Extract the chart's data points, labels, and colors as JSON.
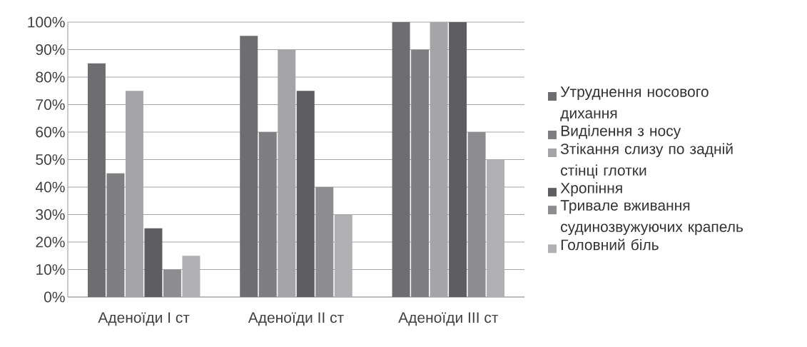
{
  "chart_data": {
    "type": "bar",
    "categories": [
      "Аденоїди І ст",
      "Аденоїди ІІ ст",
      "Аденоїди ІІІ ст"
    ],
    "series": [
      {
        "name": "Утруднення носового дихання",
        "color": "#6e6e70",
        "values": [
          85,
          95,
          100
        ]
      },
      {
        "name": "Виділення з носу",
        "color": "#7f7f82",
        "values": [
          45,
          60,
          90
        ]
      },
      {
        "name": "Зтікання слизу по задній стінці глотки",
        "color": "#a5a5a8",
        "values": [
          75,
          90,
          100
        ]
      },
      {
        "name": "Хропіння",
        "color": "#5e5e61",
        "values": [
          25,
          75,
          100
        ]
      },
      {
        "name": "Тривале вживання судинозвужуючих крапель",
        "color": "#8d8d90",
        "values": [
          10,
          40,
          60
        ]
      },
      {
        "name": "Головний біль",
        "color": "#b0b0b3",
        "values": [
          15,
          30,
          50
        ]
      }
    ],
    "ylim": [
      0,
      100
    ],
    "yticks": [
      {
        "value": 0,
        "label": "0%"
      },
      {
        "value": 10,
        "label": "10%"
      },
      {
        "value": 20,
        "label": "20%"
      },
      {
        "value": 30,
        "label": "30%"
      },
      {
        "value": 40,
        "label": "40%"
      },
      {
        "value": 50,
        "label": "50%"
      },
      {
        "value": 60,
        "label": "60%"
      },
      {
        "value": 70,
        "label": "70%"
      },
      {
        "value": 80,
        "label": "80%"
      },
      {
        "value": 90,
        "label": "90%"
      },
      {
        "value": 100,
        "label": "100%"
      }
    ],
    "grid": "y",
    "legend": "right"
  }
}
